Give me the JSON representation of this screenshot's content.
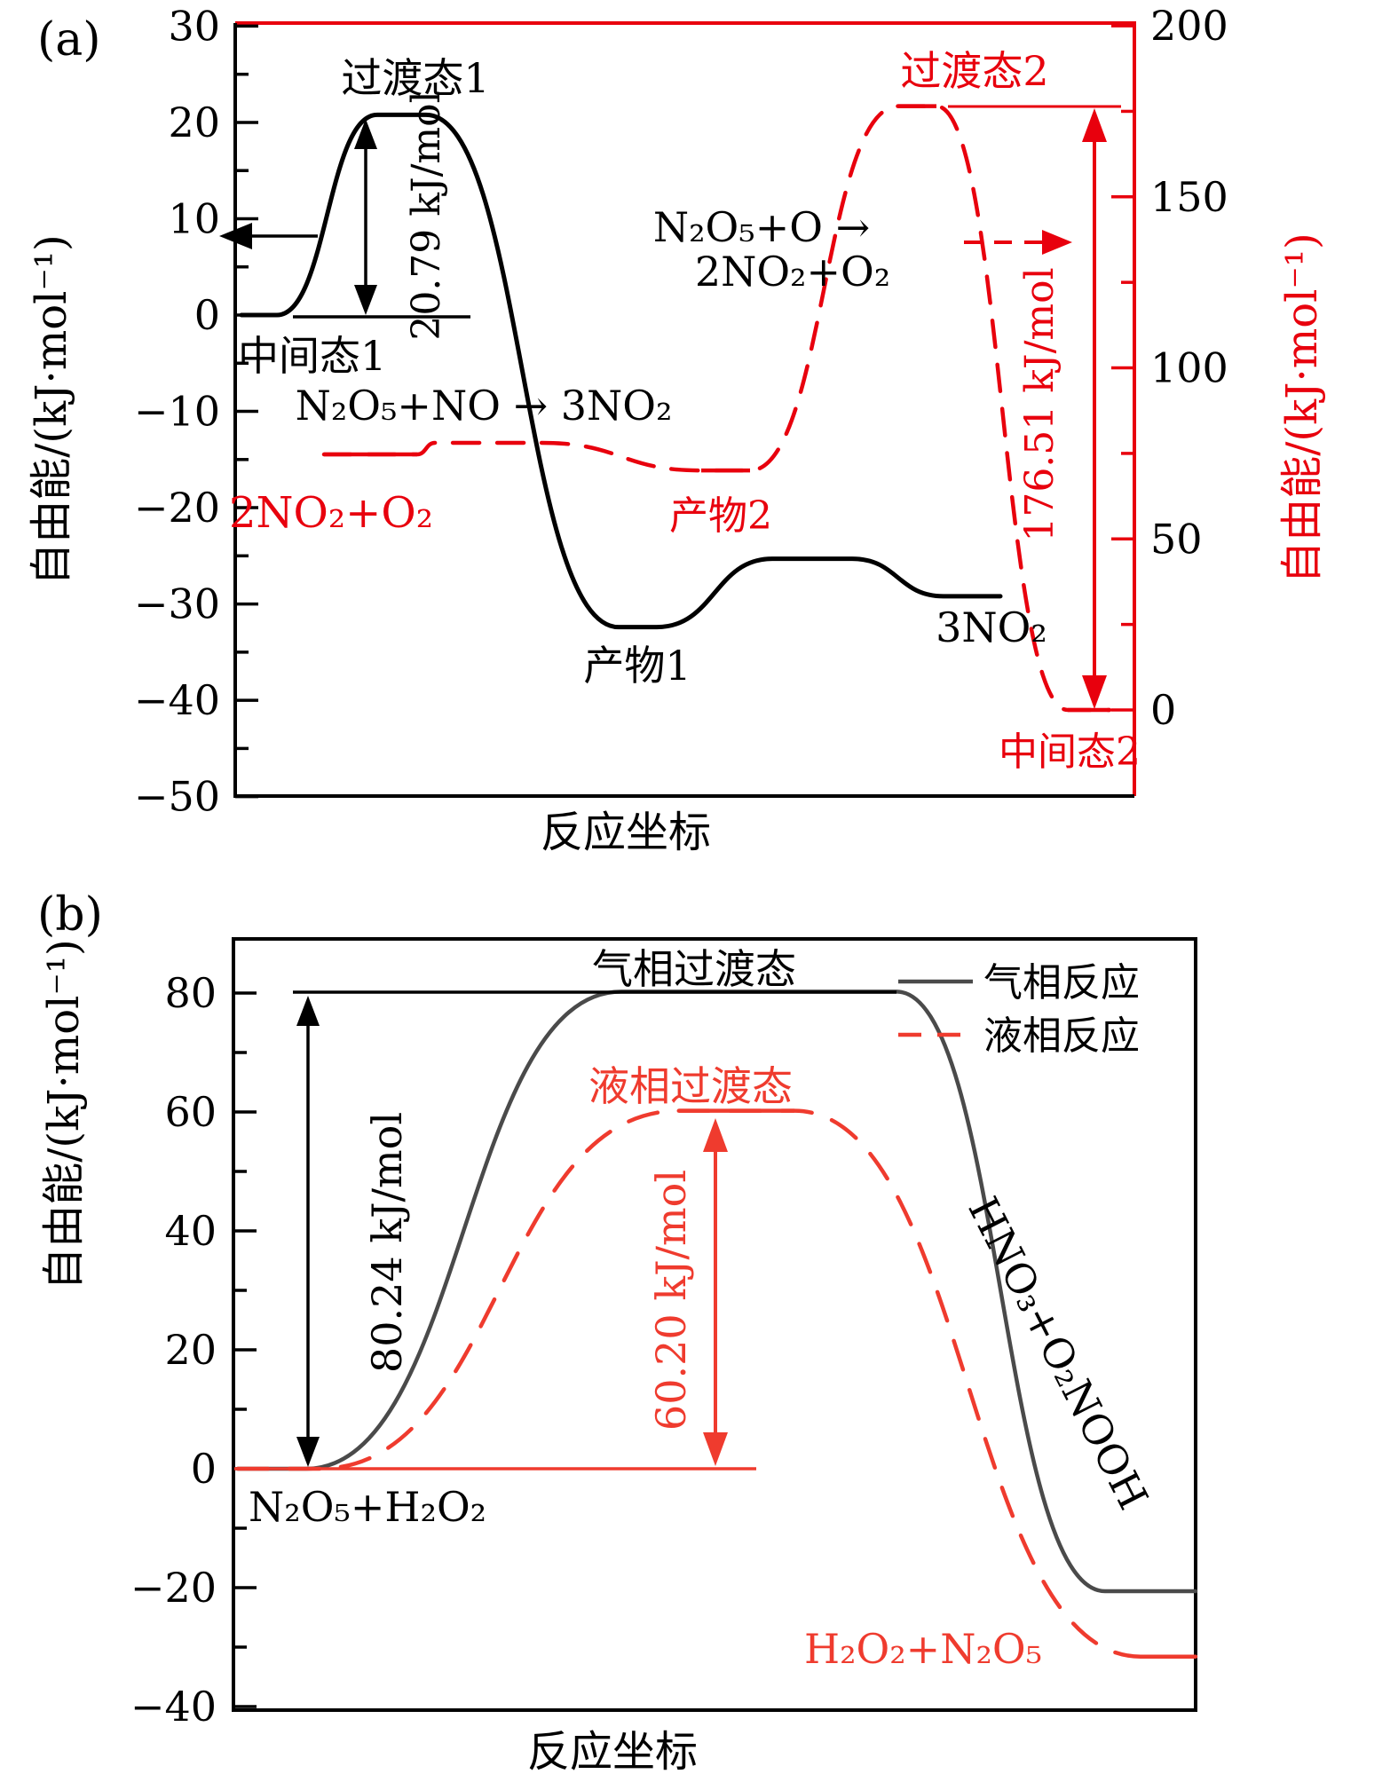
{
  "figure": {
    "background": "#ffffff",
    "accent_red_a": "#e8000d",
    "accent_red_b": "#ef3b2e",
    "gas_gray": "#4a4a4a"
  },
  "chart_data": [
    {
      "type": "line",
      "panel_tag": "(a)",
      "title": "",
      "xlabel": "反应坐标",
      "ylabel_left": "自由能/(kJ·mol⁻¹)",
      "ylabel_right": "自由能/(kJ·mol⁻¹)",
      "axes": {
        "left": {
          "min": -50,
          "max": 30,
          "major_step": 10,
          "minor_step": 5,
          "color": "#000000"
        },
        "right": {
          "min": 0,
          "max": 200,
          "major_step": 50,
          "minor_step": 25,
          "color": "#e8000d"
        }
      },
      "grid": false,
      "series": [
        {
          "name": "N₂O₅+NO → 3NO₂",
          "axis": "left",
          "line_style": "solid",
          "color": "#000000",
          "states": [
            {
              "label": "中间态1",
              "energy_kj_mol": 0
            },
            {
              "label": "过渡态1",
              "energy_kj_mol": 20.79
            },
            {
              "label": "产物1",
              "energy_kj_mol": -32.4
            },
            {
              "label": "",
              "energy_kj_mol": -25.3
            },
            {
              "label": "3NO₂",
              "energy_kj_mol": -29.2
            }
          ],
          "barrier_kj_mol": 20.79,
          "barrier_label": "20.79 kJ/mol"
        },
        {
          "name": "N₂O₅+O → 2NO₂+O₂",
          "name_line1": "N₂O₅+O →",
          "name_line2": "2NO₂+O₂",
          "axis": "right",
          "line_style": "dashed",
          "color": "#e8000d",
          "states": [
            {
              "label": "2NO₂+O₂",
              "energy_kj_mol": 74.7
            },
            {
              "label": "",
              "energy_kj_mol": 78.1
            },
            {
              "label": "产物2",
              "energy_kj_mol": 70.0
            },
            {
              "label": "过渡态2",
              "energy_kj_mol": 176.51
            },
            {
              "label": "中间态2",
              "energy_kj_mol": 0
            }
          ],
          "barrier_kj_mol": 176.51,
          "barrier_label": "176.51 kJ/mol"
        }
      ]
    },
    {
      "type": "line",
      "panel_tag": "(b)",
      "title": "",
      "xlabel": "反应坐标",
      "ylabel": "自由能/(kJ·mol⁻¹)",
      "axes": {
        "left": {
          "min": -40,
          "max": 80,
          "major_step": 20,
          "minor_step": 10,
          "color": "#000000"
        }
      },
      "grid": false,
      "legend": [
        {
          "label": "气相反应",
          "line_style": "solid",
          "color": "#4a4a4a"
        },
        {
          "label": "液相反应",
          "line_style": "dashed",
          "color": "#ef3b2e"
        }
      ],
      "series": [
        {
          "name": "气相反应",
          "axis": "left",
          "line_style": "solid",
          "color": "#4a4a4a",
          "states": [
            {
              "label": "N₂O₅+H₂O₂",
              "energy_kj_mol": 0
            },
            {
              "label": "气相过渡态",
              "energy_kj_mol": 80.24
            },
            {
              "label": "HNO₃+O₂NOOH",
              "energy_kj_mol": -20.6
            }
          ],
          "barrier_kj_mol": 80.24,
          "barrier_label": "80.24 kJ/mol"
        },
        {
          "name": "液相反应",
          "axis": "left",
          "line_style": "dashed",
          "color": "#ef3b2e",
          "states": [
            {
              "label": "",
              "energy_kj_mol": 0
            },
            {
              "label": "液相过渡态",
              "energy_kj_mol": 60.2
            },
            {
              "label": "H₂O₂+N₂O₅",
              "energy_kj_mol": -31.6
            }
          ],
          "barrier_kj_mol": 60.2,
          "barrier_label": "60.20 kJ/mol"
        }
      ]
    }
  ]
}
